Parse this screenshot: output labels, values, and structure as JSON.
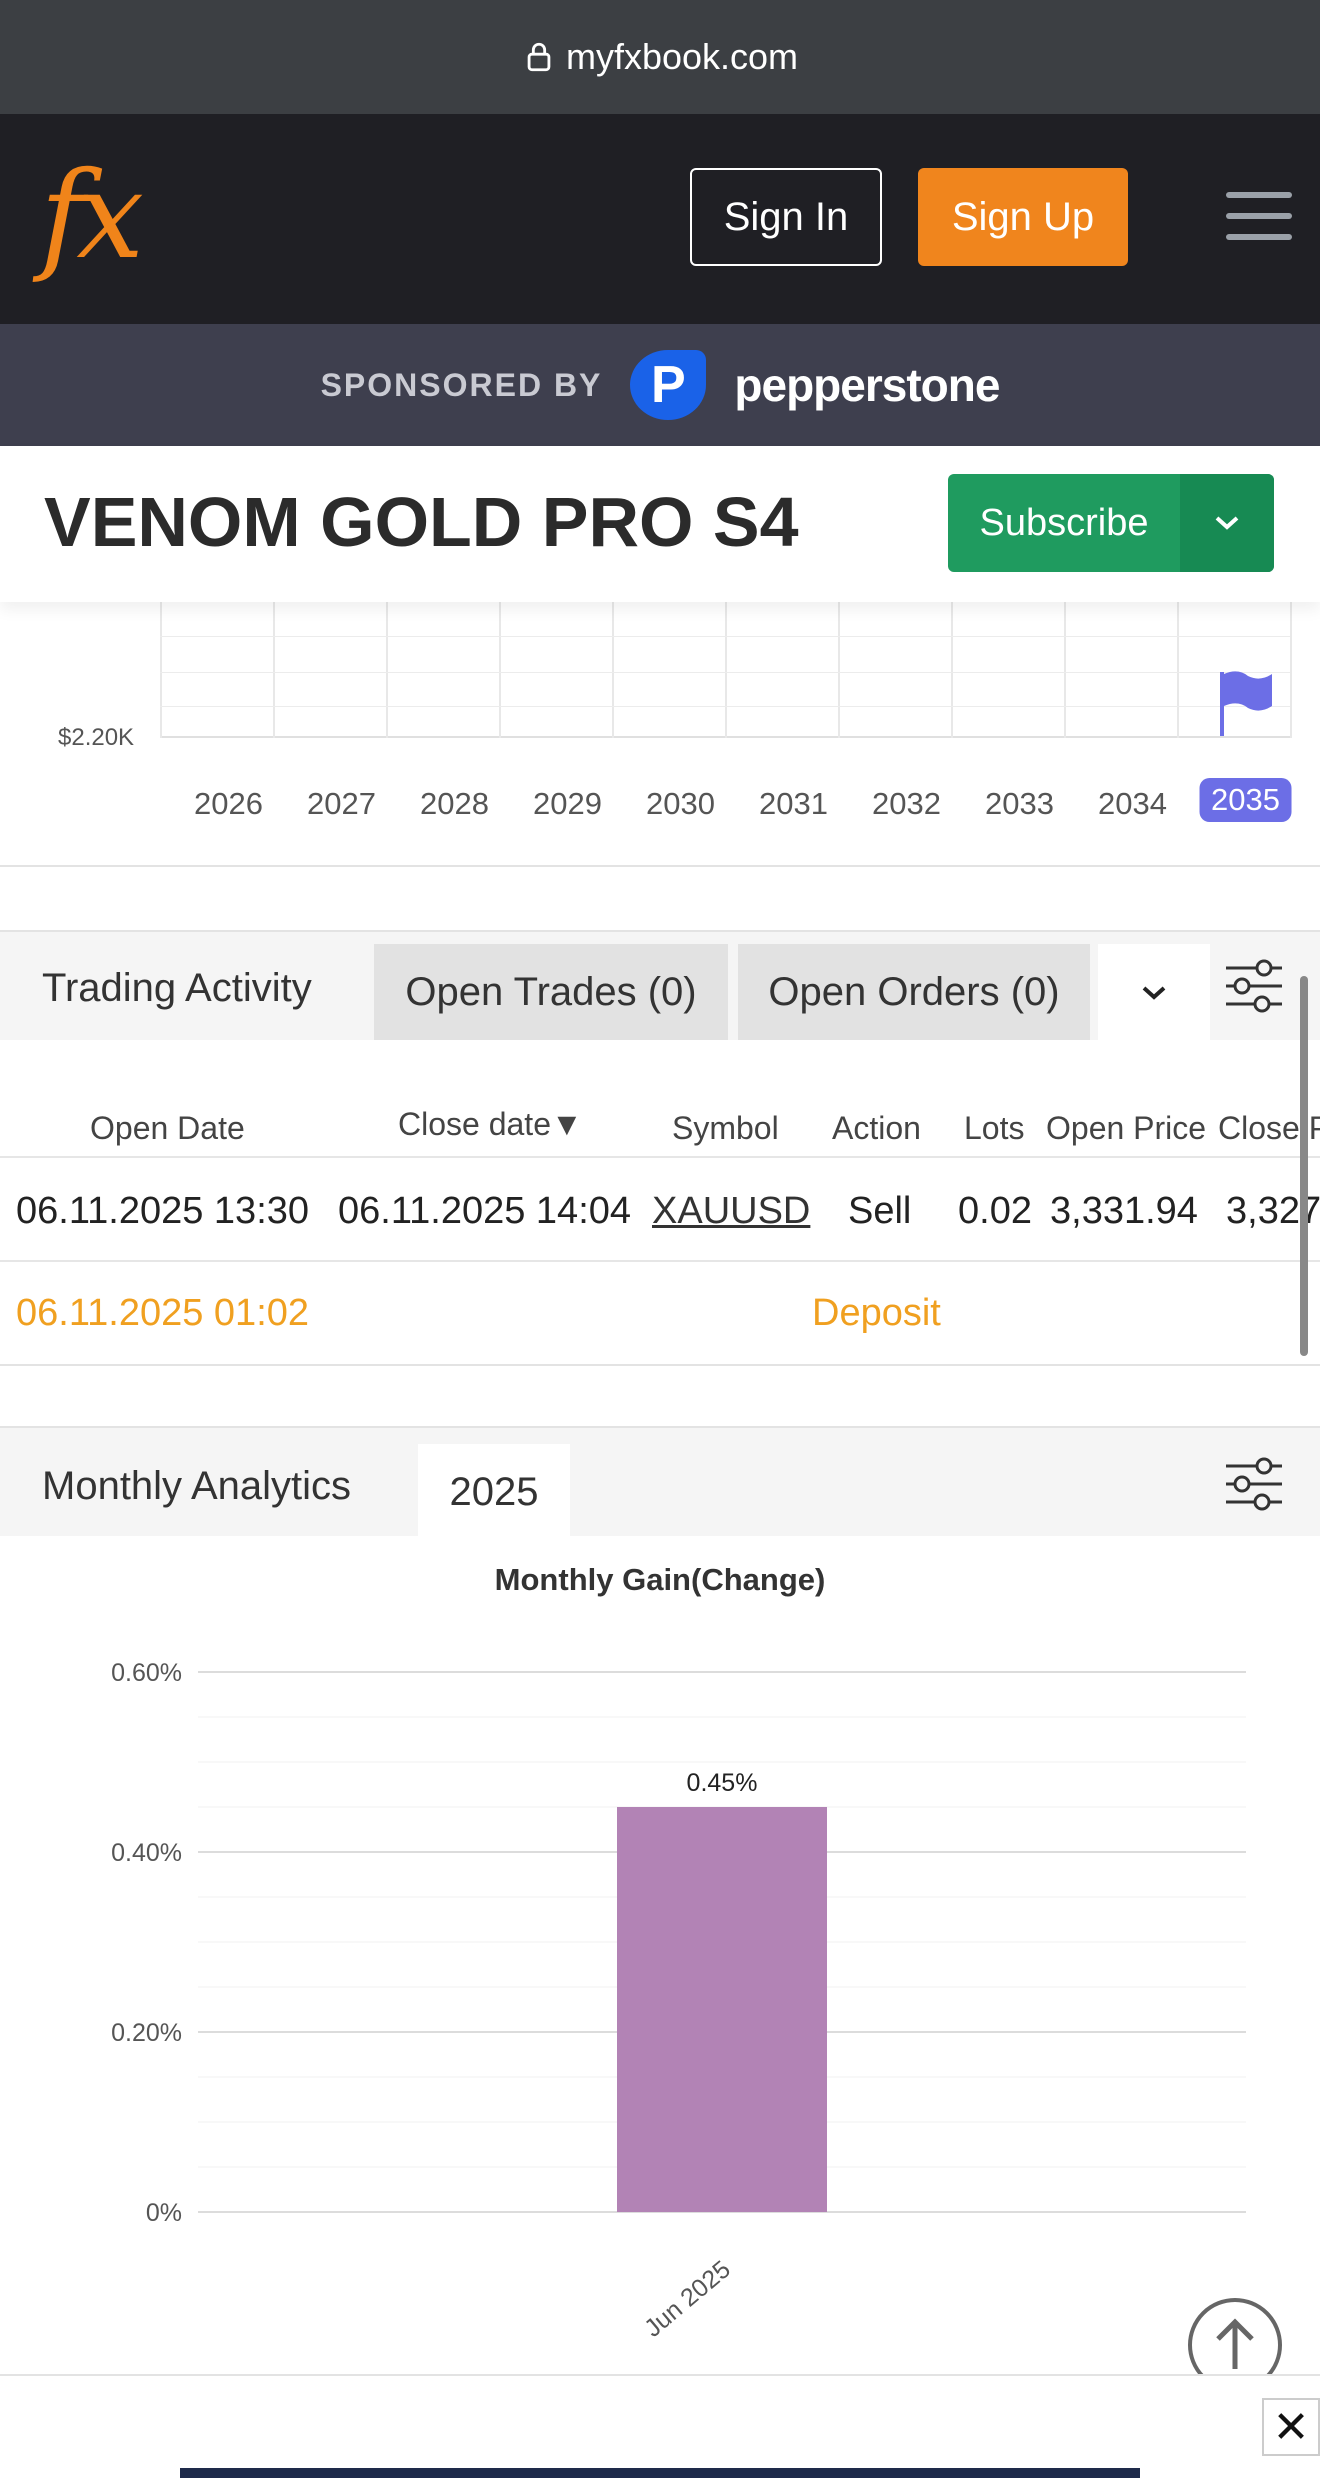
{
  "browser": {
    "url": "myfxbook.com"
  },
  "header": {
    "logo": "fx",
    "sign_in": "Sign In",
    "sign_up": "Sign Up"
  },
  "sponsor": {
    "label": "SPONSORED BY",
    "brand": "pepperstone",
    "brand_mark": "P"
  },
  "system": {
    "title": "VENOM GOLD PRO S4",
    "subscribe": "Subscribe"
  },
  "growth_chart": {
    "y_label": "$2.20K",
    "years": [
      "2026",
      "2027",
      "2028",
      "2029",
      "2030",
      "2031",
      "2032",
      "2033",
      "2034",
      "2035"
    ],
    "active_year": "2035"
  },
  "trading": {
    "title": "Trading Activity",
    "tabs": [
      {
        "label": "Open Trades (0)"
      },
      {
        "label": "Open Orders (0)"
      }
    ],
    "columns": [
      "Open Date",
      "Close date▼",
      "Symbol",
      "Action",
      "Lots",
      "Open Price",
      "Close Price"
    ],
    "rows": [
      {
        "open_date": "06.11.2025 13:30",
        "close_date": "06.11.2025 14:04",
        "symbol": "XAUUSD",
        "action": "Sell",
        "lots": "0.02",
        "open_price": "3,331.94",
        "close_price": "3,327"
      }
    ],
    "deposit": {
      "date": "06.11.2025 01:02",
      "label": "Deposit"
    }
  },
  "monthly": {
    "title": "Monthly Analytics",
    "year": "2025"
  },
  "chart_data": {
    "type": "bar",
    "title": "Monthly Gain(Change)",
    "categories": [
      "Jun 2025"
    ],
    "values": [
      0.45
    ],
    "value_labels": [
      "0.45%"
    ],
    "y_ticks": [
      "0%",
      "0.20%",
      "0.40%",
      "0.60%"
    ],
    "ylim": [
      0,
      0.6
    ],
    "grid": true,
    "bar_color": "#b283b5"
  },
  "colors": {
    "accent_orange": "#f0851d",
    "subscribe_green": "#1f9b5f",
    "active_year": "#6c6ee6",
    "deposit": "#f0a020"
  }
}
